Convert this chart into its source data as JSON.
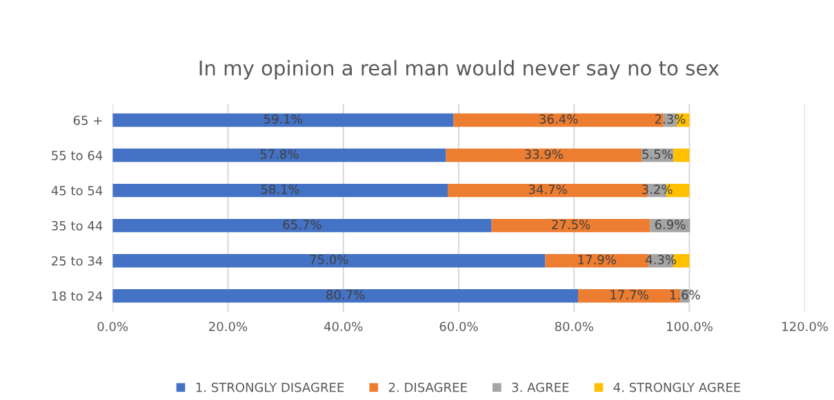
{
  "chart_data": {
    "type": "bar",
    "orientation": "horizontal",
    "stacked": true,
    "title": "In my opinion a real man would never say no to sex",
    "categories": [
      "65 +",
      "55 to 64",
      "45 to 54",
      "35 to 44",
      "25 to 34",
      "18 to 24"
    ],
    "series": [
      {
        "name": "1. STRONGLY DISAGREE",
        "color": "#4472c4",
        "values": [
          59.1,
          57.8,
          58.1,
          65.7,
          75.0,
          80.7
        ],
        "value_labels": [
          "59.1%",
          "57.8%",
          "58.1%",
          "65.7%",
          "75.0%",
          "80.7%"
        ]
      },
      {
        "name": "2. DISAGREE",
        "color": "#ed7d31",
        "values": [
          36.4,
          33.9,
          34.7,
          27.5,
          17.9,
          17.7
        ],
        "value_labels": [
          "36.4%",
          "33.9%",
          "34.7%",
          "27.5%",
          "17.9%",
          "17.7%"
        ]
      },
      {
        "name": "3. AGREE",
        "color": "#a5a5a5",
        "values": [
          2.3,
          5.5,
          3.2,
          6.9,
          4.3,
          1.6
        ],
        "value_labels": [
          "2.3%",
          "5.5%",
          "3.2%",
          "6.9%",
          "4.3%",
          "1.6%"
        ]
      },
      {
        "name": "4. STRONGLY AGREE",
        "color": "#ffc000",
        "values": [
          2.2,
          2.8,
          4.0,
          null,
          2.8,
          null
        ],
        "value_labels": [
          null,
          null,
          null,
          null,
          null,
          null
        ]
      }
    ],
    "xlim": [
      0,
      120
    ],
    "xticks": [
      {
        "value": 0,
        "label": "0.0%"
      },
      {
        "value": 20,
        "label": "20.0%"
      },
      {
        "value": 40,
        "label": "40.0%"
      },
      {
        "value": 60,
        "label": "60.0%"
      },
      {
        "value": 80,
        "label": "80.0%"
      },
      {
        "value": 100,
        "label": "100.0%"
      },
      {
        "value": 120,
        "label": "120.0%"
      }
    ],
    "grid": "x",
    "legend": "bottom"
  }
}
